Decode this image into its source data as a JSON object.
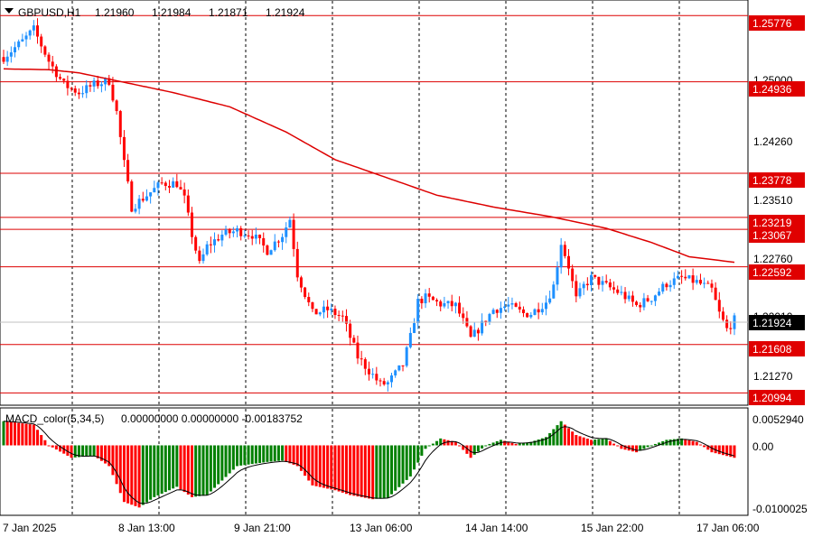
{
  "header": {
    "symbol_label": "GBPUSD,H1",
    "open": "1.21960",
    "high": "1.21984",
    "low": "1.21871",
    "close": "1.21924"
  },
  "indicator": {
    "label": "MACD_color(5,34,5)",
    "values": "0.00000000 0.00000000 -0.00183752",
    "axis_labels": [
      "0.0052940",
      "0.00",
      "-0.0100025"
    ]
  },
  "colors": {
    "bull": "#1e90ff",
    "bear": "#ff0000",
    "level_line": "#dd0000",
    "ma_line": "#dd0000",
    "macd_up": "#008000",
    "macd_down": "#ff0000",
    "grid": "#000000"
  },
  "chart_data": {
    "type": "candlestick",
    "price_axis_labels": [
      "1.25000",
      "1.24260",
      "1.23510",
      "1.22760",
      "1.22010",
      "1.21270"
    ],
    "level_labels": [
      "1.25776",
      "1.24936",
      "1.23778",
      "1.23219",
      "1.23067",
      "1.22592",
      "1.21608",
      "1.20994"
    ],
    "current_price": "1.21924",
    "ylim": [
      1.2085,
      1.2595
    ],
    "x_labels": [
      "7 Jan 2025",
      "8 Jan 13:00",
      "9 Jan 21:00",
      "13 Jan 06:00",
      "14 Jan 14:00",
      "15 Jan 22:00",
      "17 Jan 06:00"
    ],
    "close_path": [
      [
        0,
        1.2525
      ],
      [
        5,
        1.2545
      ],
      [
        8,
        1.256
      ],
      [
        10,
        1.254
      ],
      [
        12,
        1.252
      ],
      [
        14,
        1.2505
      ],
      [
        16,
        1.249
      ],
      [
        20,
        1.248
      ],
      [
        24,
        1.249
      ],
      [
        28,
        1.2495
      ],
      [
        30,
        1.2455
      ],
      [
        32,
        1.239
      ],
      [
        34,
        1.2335
      ],
      [
        38,
        1.235
      ],
      [
        42,
        1.2365
      ],
      [
        46,
        1.2365
      ],
      [
        48,
        1.2345
      ],
      [
        50,
        1.23
      ],
      [
        52,
        1.2262
      ],
      [
        54,
        1.2285
      ],
      [
        58,
        1.23
      ],
      [
        62,
        1.2305
      ],
      [
        66,
        1.23
      ],
      [
        70,
        1.228
      ],
      [
        74,
        1.23
      ],
      [
        76,
        1.232
      ],
      [
        78,
        1.225
      ],
      [
        82,
        1.22
      ],
      [
        86,
        1.2205
      ],
      [
        90,
        1.2195
      ],
      [
        94,
        1.2145
      ],
      [
        98,
        1.2122
      ],
      [
        100,
        1.211
      ],
      [
        102,
        1.2112
      ],
      [
        106,
        1.2135
      ],
      [
        108,
        1.217
      ],
      [
        110,
        1.2215
      ],
      [
        112,
        1.222
      ],
      [
        116,
        1.2212
      ],
      [
        120,
        1.221
      ],
      [
        122,
        1.219
      ],
      [
        124,
        1.2168
      ],
      [
        126,
        1.218
      ],
      [
        130,
        1.2205
      ],
      [
        134,
        1.221
      ],
      [
        138,
        1.22
      ],
      [
        140,
        1.22
      ],
      [
        144,
        1.2215
      ],
      [
        146,
        1.2235
      ],
      [
        148,
        1.229
      ],
      [
        150,
        1.226
      ],
      [
        152,
        1.2218
      ],
      [
        154,
        1.2235
      ],
      [
        156,
        1.2245
      ],
      [
        160,
        1.2235
      ],
      [
        164,
        1.2225
      ],
      [
        168,
        1.221
      ],
      [
        172,
        1.222
      ],
      [
        176,
        1.2238
      ],
      [
        180,
        1.2245
      ],
      [
        184,
        1.224
      ],
      [
        188,
        1.223
      ],
      [
        190,
        1.22
      ],
      [
        192,
        1.218
      ],
      [
        194,
        1.2192
      ]
    ],
    "ma_path": [
      [
        0,
        1.251
      ],
      [
        12,
        1.2509
      ],
      [
        20,
        1.2505
      ],
      [
        30,
        1.2495
      ],
      [
        45,
        1.248
      ],
      [
        60,
        1.2462
      ],
      [
        75,
        1.243
      ],
      [
        88,
        1.2395
      ],
      [
        100,
        1.2375
      ],
      [
        115,
        1.235
      ],
      [
        130,
        1.2335
      ],
      [
        145,
        1.2323
      ],
      [
        160,
        1.2308
      ],
      [
        172,
        1.229
      ],
      [
        182,
        1.2272
      ],
      [
        194,
        1.2265
      ]
    ],
    "candle_count": 195,
    "macd": {
      "ylim": [
        -0.0100025,
        0.005294
      ],
      "anchors": [
        [
          0,
          0.0035
        ],
        [
          8,
          0.003
        ],
        [
          12,
          0.0
        ],
        [
          18,
          -0.0018
        ],
        [
          24,
          -0.0015
        ],
        [
          28,
          -0.003
        ],
        [
          32,
          -0.0082
        ],
        [
          36,
          -0.009
        ],
        [
          40,
          -0.0075
        ],
        [
          46,
          -0.006
        ],
        [
          50,
          -0.0075
        ],
        [
          54,
          -0.0072
        ],
        [
          62,
          -0.003
        ],
        [
          70,
          -0.0024
        ],
        [
          74,
          -0.0022
        ],
        [
          78,
          -0.003
        ],
        [
          82,
          -0.0058
        ],
        [
          88,
          -0.0065
        ],
        [
          92,
          -0.0072
        ],
        [
          98,
          -0.0078
        ],
        [
          102,
          -0.0076
        ],
        [
          108,
          -0.0045
        ],
        [
          112,
          -0.0005
        ],
        [
          116,
          0.001
        ],
        [
          120,
          0.0005
        ],
        [
          124,
          -0.0018
        ],
        [
          128,
          0.0
        ],
        [
          132,
          0.0008
        ],
        [
          136,
          0.0002
        ],
        [
          140,
          0.0005
        ],
        [
          144,
          0.0012
        ],
        [
          148,
          0.0035
        ],
        [
          152,
          0.0015
        ],
        [
          156,
          0.0008
        ],
        [
          160,
          0.001
        ],
        [
          164,
          -0.0005
        ],
        [
          168,
          -0.001
        ],
        [
          172,
          0.0
        ],
        [
          176,
          0.0008
        ],
        [
          180,
          0.001
        ],
        [
          184,
          0.0005
        ],
        [
          188,
          -0.001
        ],
        [
          194,
          -0.0018
        ]
      ]
    }
  }
}
